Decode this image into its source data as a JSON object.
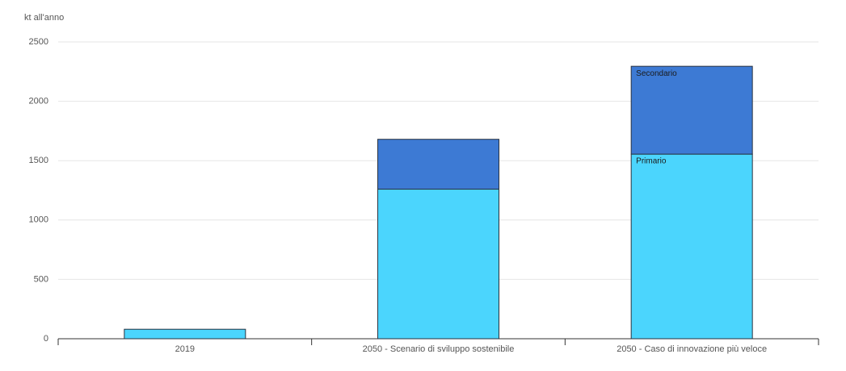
{
  "chart_data": {
    "type": "stacked_bar",
    "y_label": "kt all'anno",
    "categories": [
      "2019",
      "2050 - Scenario di sviluppo sostenibile",
      "2050 - Caso di innovazione più veloce"
    ],
    "series": [
      {
        "name": "Primario",
        "color": "#4bd5fd",
        "values": [
          80,
          1260,
          1555
        ]
      },
      {
        "name": "Secondario",
        "color": "#3d7ad4",
        "values": [
          0,
          420,
          740
        ]
      }
    ],
    "ylim": [
      0,
      2500
    ],
    "yticks": [
      0,
      500,
      1000,
      1500,
      2000,
      2500
    ],
    "grid": true
  }
}
